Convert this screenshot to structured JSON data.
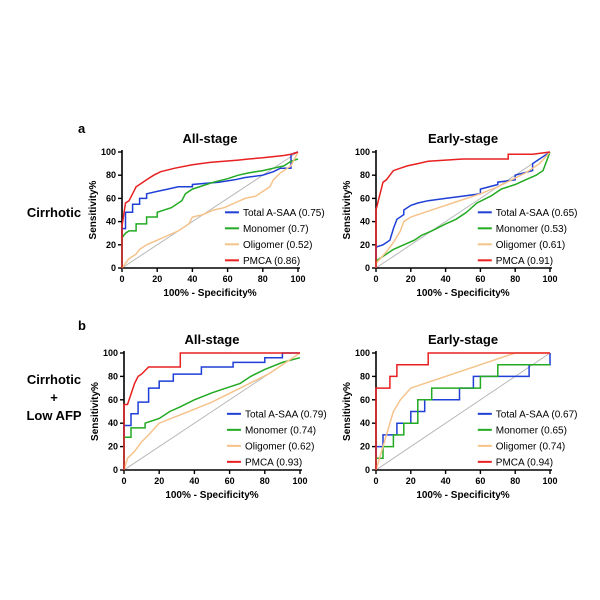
{
  "figure": {
    "row_labels": [
      {
        "lines": [
          "Cirrhotic"
        ]
      },
      {
        "lines": [
          "Cirrhotic",
          "+",
          "Low AFP"
        ]
      }
    ]
  },
  "chart_data": [
    {
      "type": "line",
      "panel_label": "a",
      "title": "All-stage",
      "xlabel": "100% - Specificity%",
      "ylabel": "Sensitivity%",
      "xlim": [
        0,
        100
      ],
      "ylim": [
        0,
        100
      ],
      "xticks": [
        "0",
        "20",
        "40",
        "60",
        "80",
        "100"
      ],
      "yticks": [
        "0",
        "20",
        "40",
        "60",
        "80",
        "100"
      ],
      "legend_position": "bottom-right",
      "reference_line": {
        "x": [
          0,
          100
        ],
        "y": [
          0,
          100
        ],
        "color": "#b8b8b8"
      },
      "series": [
        {
          "name": "Total A-SAA (0.75)",
          "color": "#1f3fd6",
          "x": [
            0,
            0,
            2,
            2,
            6,
            6,
            10,
            10,
            14,
            14,
            20,
            26,
            32,
            40,
            40,
            48,
            55,
            64,
            70,
            80,
            86,
            90,
            96,
            96,
            100
          ],
          "y": [
            0,
            34,
            34,
            48,
            48,
            55,
            55,
            60,
            60,
            64,
            66,
            68,
            70,
            70,
            72,
            73,
            74,
            76,
            78,
            80,
            83,
            86,
            86,
            98,
            100
          ]
        },
        {
          "name": "Monomer (0.7)",
          "color": "#22aa22",
          "x": [
            0,
            0,
            2,
            4,
            8,
            8,
            14,
            14,
            20,
            20,
            28,
            34,
            36,
            40,
            48,
            52,
            60,
            66,
            72,
            80,
            86,
            92,
            96,
            100
          ],
          "y": [
            0,
            26,
            30,
            32,
            32,
            38,
            38,
            44,
            44,
            48,
            52,
            58,
            64,
            68,
            72,
            74,
            77,
            80,
            82,
            84,
            86,
            88,
            92,
            94
          ]
        },
        {
          "name": "Oligomer (0.52)",
          "color": "#f5c38a",
          "x": [
            0,
            2,
            4,
            6,
            8,
            10,
            14,
            20,
            26,
            32,
            38,
            40,
            46,
            52,
            58,
            64,
            70,
            76,
            80,
            84,
            86,
            90,
            96,
            98,
            100
          ],
          "y": [
            0,
            4,
            8,
            10,
            12,
            16,
            20,
            24,
            28,
            32,
            38,
            44,
            46,
            50,
            52,
            56,
            60,
            62,
            66,
            70,
            76,
            82,
            88,
            94,
            100
          ]
        },
        {
          "name": "PMCA (0.86)",
          "color": "#e82020",
          "x": [
            0,
            0,
            2,
            4,
            6,
            8,
            10,
            14,
            18,
            22,
            30,
            40,
            50,
            58,
            66,
            72,
            80,
            86,
            92,
            96,
            100
          ],
          "y": [
            0,
            36,
            56,
            58,
            64,
            70,
            72,
            76,
            80,
            83,
            86,
            89,
            91,
            92,
            93,
            94,
            95,
            96,
            97,
            98,
            100
          ]
        }
      ]
    },
    {
      "type": "line",
      "panel_label": "",
      "title": "Early-stage",
      "xlabel": "100% - Specificity%",
      "ylabel": "Sensitivity%",
      "xlim": [
        0,
        100
      ],
      "ylim": [
        0,
        100
      ],
      "xticks": [
        "0",
        "20",
        "40",
        "60",
        "80",
        "100"
      ],
      "yticks": [
        "0",
        "20",
        "40",
        "60",
        "80",
        "100"
      ],
      "legend_position": "bottom-right",
      "reference_line": {
        "x": [
          0,
          100
        ],
        "y": [
          0,
          100
        ],
        "color": "#b8b8b8"
      },
      "series": [
        {
          "name": "Total A-SAA (0.65)",
          "color": "#1f3fd6",
          "x": [
            0,
            0,
            4,
            8,
            10,
            12,
            16,
            16,
            20,
            24,
            30,
            40,
            50,
            60,
            60,
            70,
            70,
            80,
            80,
            90,
            90,
            100
          ],
          "y": [
            0,
            18,
            20,
            24,
            34,
            42,
            46,
            50,
            54,
            56,
            58,
            60,
            62,
            64,
            68,
            72,
            74,
            76,
            80,
            84,
            90,
            100
          ]
        },
        {
          "name": "Monomer (0.53)",
          "color": "#22aa22",
          "x": [
            0,
            0,
            6,
            10,
            16,
            22,
            26,
            32,
            40,
            46,
            52,
            58,
            66,
            72,
            80,
            86,
            92,
            96,
            100
          ],
          "y": [
            0,
            6,
            12,
            16,
            20,
            24,
            28,
            32,
            38,
            42,
            48,
            56,
            62,
            68,
            72,
            76,
            80,
            84,
            100
          ]
        },
        {
          "name": "Oligomer (0.61)",
          "color": "#f5c38a",
          "x": [
            0,
            0,
            6,
            10,
            14,
            16,
            20,
            28,
            36,
            44,
            52,
            60,
            70,
            78,
            86,
            94,
            100
          ],
          "y": [
            0,
            4,
            14,
            22,
            32,
            40,
            44,
            48,
            52,
            56,
            60,
            64,
            70,
            76,
            82,
            90,
            100
          ]
        },
        {
          "name": "PMCA (0.91)",
          "color": "#e82020",
          "x": [
            0,
            0,
            2,
            4,
            6,
            8,
            10,
            14,
            18,
            24,
            30,
            40,
            50,
            60,
            76,
            76,
            90,
            100
          ],
          "y": [
            0,
            50,
            62,
            74,
            76,
            80,
            84,
            86,
            88,
            90,
            92,
            93,
            94,
            94,
            94,
            98,
            98,
            100
          ]
        }
      ]
    },
    {
      "type": "line",
      "panel_label": "b",
      "title": "All-stage",
      "xlabel": "100% - Specificity%",
      "ylabel": "Sensitivity%",
      "xlim": [
        0,
        100
      ],
      "ylim": [
        0,
        100
      ],
      "xticks": [
        "0",
        "20",
        "40",
        "60",
        "80",
        "100"
      ],
      "yticks": [
        "0",
        "20",
        "40",
        "60",
        "80",
        "100"
      ],
      "legend_position": "bottom-right",
      "reference_line": {
        "x": [
          0,
          100
        ],
        "y": [
          0,
          100
        ],
        "color": "#b8b8b8"
      },
      "series": [
        {
          "name": "Total A-SAA (0.79)",
          "color": "#1f3fd6",
          "x": [
            0,
            0,
            4,
            4,
            8,
            8,
            14,
            14,
            20,
            20,
            28,
            28,
            44,
            44,
            62,
            62,
            80,
            80,
            90,
            90,
            100
          ],
          "y": [
            0,
            38,
            38,
            48,
            48,
            58,
            58,
            70,
            70,
            76,
            76,
            82,
            82,
            88,
            88,
            92,
            92,
            96,
            96,
            100,
            100
          ]
        },
        {
          "name": "Monomer (0.74)",
          "color": "#22aa22",
          "x": [
            0,
            0,
            4,
            4,
            12,
            12,
            20,
            26,
            32,
            40,
            50,
            58,
            66,
            72,
            80,
            90,
            100
          ],
          "y": [
            0,
            28,
            28,
            36,
            36,
            40,
            44,
            50,
            54,
            60,
            66,
            70,
            74,
            80,
            86,
            92,
            96
          ]
        },
        {
          "name": "Oligomer (0.62)",
          "color": "#f5c38a",
          "x": [
            0,
            2,
            6,
            10,
            14,
            20,
            30,
            40,
            50,
            58,
            66,
            74,
            82,
            90,
            100
          ],
          "y": [
            0,
            10,
            16,
            24,
            30,
            40,
            46,
            52,
            58,
            64,
            70,
            76,
            82,
            90,
            100
          ]
        },
        {
          "name": "PMCA (0.93)",
          "color": "#e82020",
          "x": [
            0,
            0,
            2,
            6,
            8,
            10,
            14,
            20,
            32,
            32,
            60,
            100
          ],
          "y": [
            0,
            56,
            56,
            74,
            80,
            82,
            88,
            88,
            88,
            100,
            100,
            100
          ]
        }
      ]
    },
    {
      "type": "line",
      "panel_label": "",
      "title": "Early-stage",
      "xlabel": "100% - Specificity%",
      "ylabel": "Sensitivity%",
      "xlim": [
        0,
        100
      ],
      "ylim": [
        0,
        100
      ],
      "xticks": [
        "0",
        "20",
        "40",
        "60",
        "80",
        "100"
      ],
      "yticks": [
        "0",
        "20",
        "40",
        "60",
        "80",
        "100"
      ],
      "legend_position": "bottom-right",
      "reference_line": {
        "x": [
          0,
          100
        ],
        "y": [
          0,
          100
        ],
        "color": "#b8b8b8"
      },
      "series": [
        {
          "name": "Total A-SAA (0.67)",
          "color": "#1f3fd6",
          "x": [
            0,
            0,
            4,
            4,
            12,
            12,
            20,
            20,
            28,
            28,
            48,
            48,
            56,
            56,
            70,
            70,
            88,
            88,
            100,
            100
          ],
          "y": [
            0,
            20,
            20,
            30,
            30,
            40,
            40,
            50,
            50,
            60,
            60,
            70,
            70,
            80,
            80,
            80,
            80,
            90,
            90,
            100
          ]
        },
        {
          "name": "Monomer (0.65)",
          "color": "#22aa22",
          "x": [
            0,
            0,
            4,
            4,
            10,
            10,
            16,
            16,
            24,
            24,
            32,
            32,
            60,
            60,
            70,
            70,
            100
          ],
          "y": [
            0,
            10,
            10,
            20,
            20,
            30,
            30,
            40,
            40,
            60,
            60,
            70,
            70,
            80,
            80,
            90,
            90
          ]
        },
        {
          "name": "Oligomer (0.74)",
          "color": "#f5c38a",
          "x": [
            0,
            2,
            4,
            6,
            8,
            10,
            14,
            20,
            40,
            60,
            80,
            100
          ],
          "y": [
            0,
            10,
            20,
            30,
            40,
            50,
            60,
            70,
            80,
            90,
            100,
            100
          ]
        },
        {
          "name": "PMCA (0.94)",
          "color": "#e82020",
          "x": [
            0,
            0,
            8,
            8,
            12,
            12,
            20,
            20,
            30,
            30,
            60,
            100
          ],
          "y": [
            0,
            70,
            70,
            80,
            80,
            90,
            90,
            90,
            90,
            100,
            100,
            100
          ]
        }
      ]
    }
  ]
}
